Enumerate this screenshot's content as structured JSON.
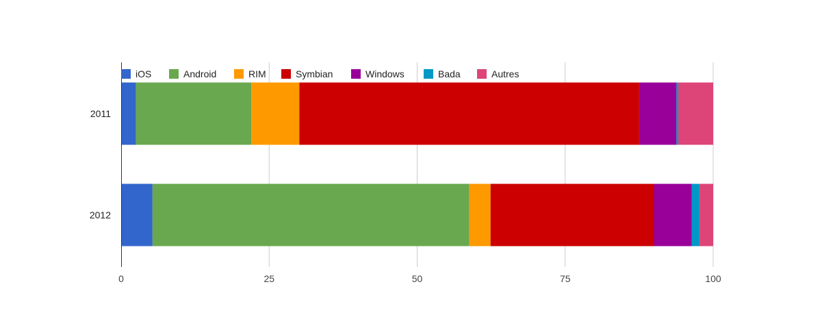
{
  "chart_data": {
    "type": "bar",
    "orientation": "horizontal",
    "stacked": true,
    "categories": [
      "2011",
      "2012"
    ],
    "series": [
      {
        "name": "iOS",
        "color": "#3366cc",
        "values": [
          2.5,
          5.3
        ]
      },
      {
        "name": "Android",
        "color": "#6aa84f",
        "values": [
          19.5,
          53.5
        ]
      },
      {
        "name": "RIM",
        "color": "#ff9900",
        "values": [
          8.1,
          3.6
        ]
      },
      {
        "name": "Symbian",
        "color": "#cc0000",
        "values": [
          57.4,
          27.6
        ]
      },
      {
        "name": "Windows",
        "color": "#990099",
        "values": [
          6.3,
          6.4
        ]
      },
      {
        "name": "Bada",
        "color": "#0099c6",
        "values": [
          0.3,
          1.3
        ]
      },
      {
        "name": "Autres",
        "color": "#dd4477",
        "values": [
          5.9,
          2.3
        ]
      }
    ],
    "x_ticks": [
      "0",
      "25",
      "50",
      "75",
      "100"
    ],
    "xlim": [
      0,
      100
    ],
    "title": "",
    "xlabel": "",
    "ylabel": "",
    "grid": true,
    "legend_position": "top"
  }
}
